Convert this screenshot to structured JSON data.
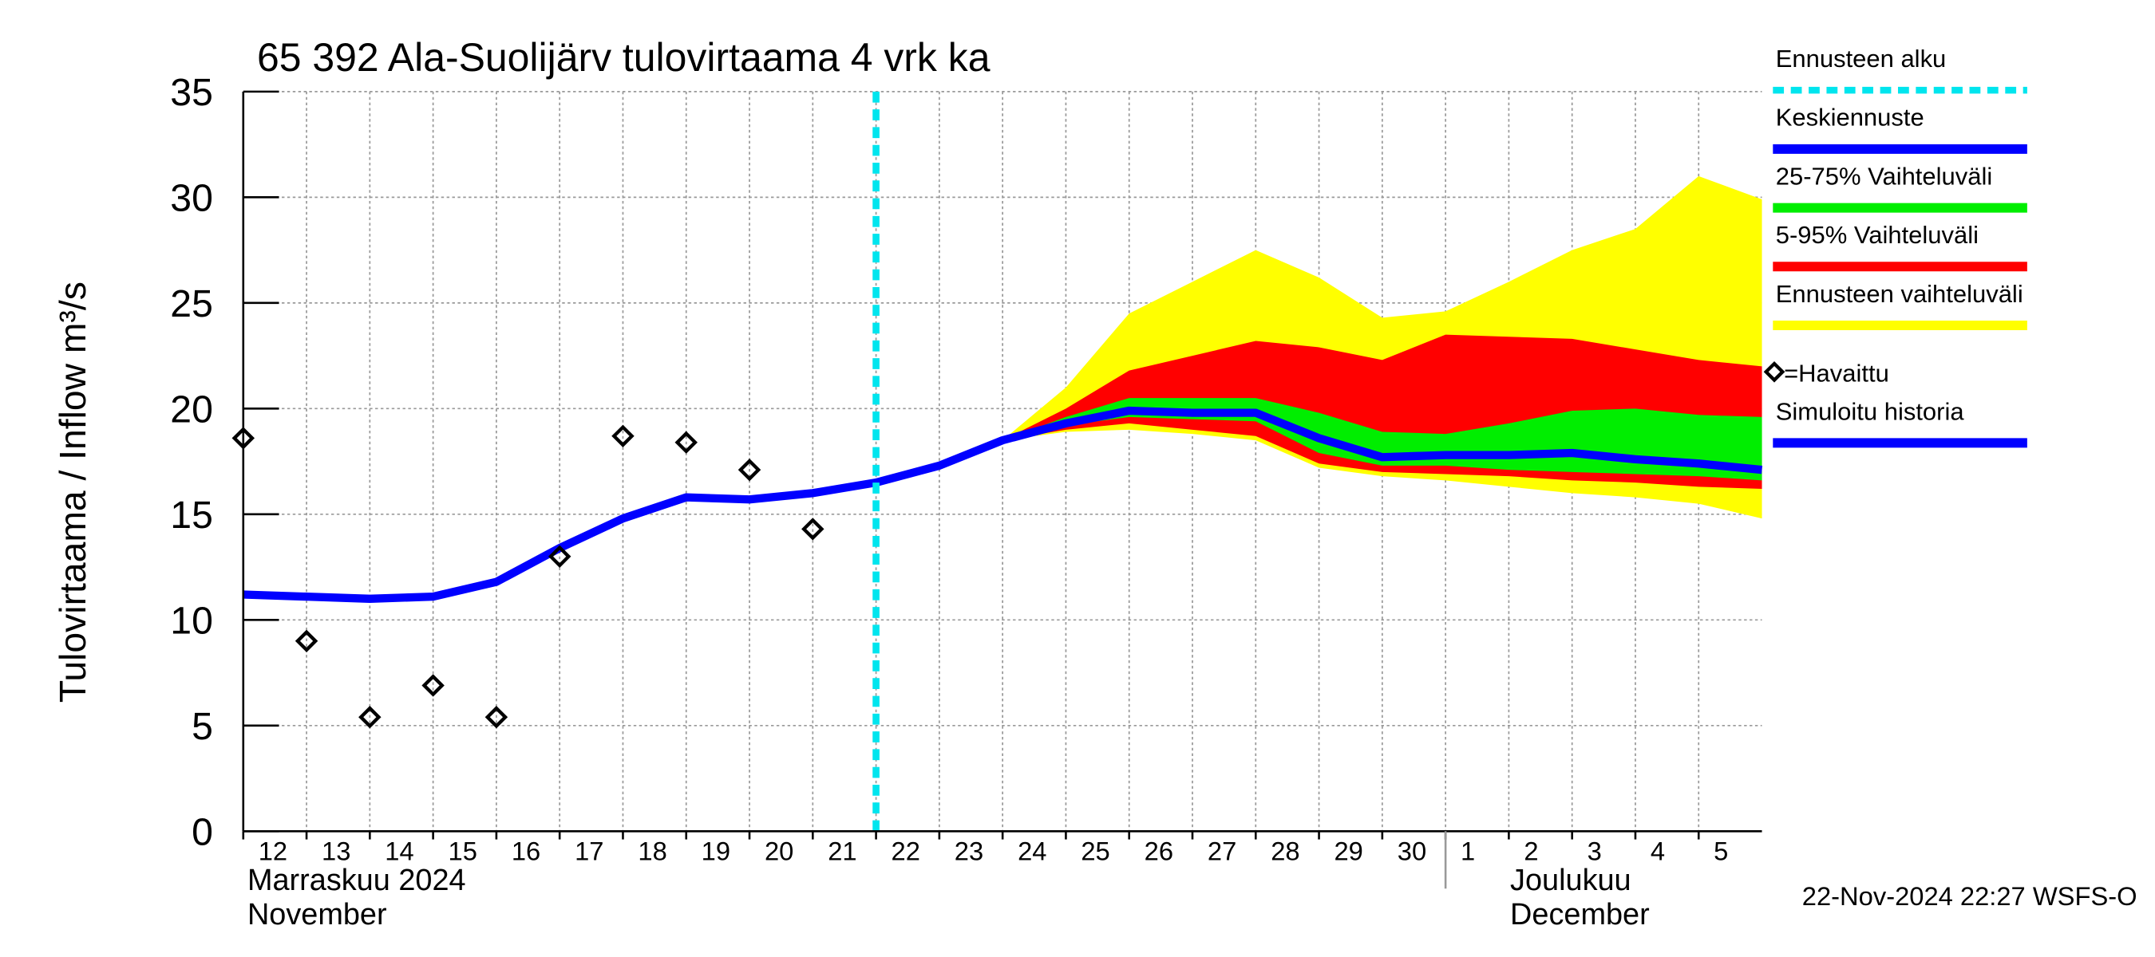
{
  "chart_data": {
    "type": "line",
    "title": "65 392 Ala-Suolijärv tulovirtaama 4 vrk ka",
    "ylabel": "Tulovirtaama / Inflow    m³/s",
    "timestamp": "22-Nov-2024 22:27 WSFS-O",
    "month_labels": [
      [
        "Marraskuu 2024",
        "November"
      ],
      [
        "Joulukuu",
        "December"
      ]
    ],
    "xlim": [
      0,
      24
    ],
    "ylim": [
      0,
      35
    ],
    "grid": true,
    "xticks": [
      {
        "value": 0,
        "label": "12"
      },
      {
        "value": 1,
        "label": "13"
      },
      {
        "value": 2,
        "label": "14"
      },
      {
        "value": 3,
        "label": "15"
      },
      {
        "value": 4,
        "label": "16"
      },
      {
        "value": 5,
        "label": "17"
      },
      {
        "value": 6,
        "label": "18"
      },
      {
        "value": 7,
        "label": "19"
      },
      {
        "value": 8,
        "label": "20"
      },
      {
        "value": 9,
        "label": "21"
      },
      {
        "value": 10,
        "label": "22"
      },
      {
        "value": 11,
        "label": "23"
      },
      {
        "value": 12,
        "label": "24"
      },
      {
        "value": 13,
        "label": "25"
      },
      {
        "value": 14,
        "label": "26"
      },
      {
        "value": 15,
        "label": "27"
      },
      {
        "value": 16,
        "label": "28"
      },
      {
        "value": 17,
        "label": "29"
      },
      {
        "value": 18,
        "label": "30"
      },
      {
        "value": 19,
        "label": "1"
      },
      {
        "value": 20,
        "label": "2"
      },
      {
        "value": 21,
        "label": "3"
      },
      {
        "value": 22,
        "label": "4"
      },
      {
        "value": 23,
        "label": "5"
      }
    ],
    "yticks": [
      0,
      5,
      10,
      15,
      20,
      25,
      30,
      35
    ],
    "forecast_start": {
      "name": "Ennusteen alku",
      "color": "#00e5ee",
      "x": 10
    },
    "series": [
      {
        "name": "Keskiennuste",
        "type": "line",
        "color": "#0000ff",
        "x": [
          10,
          11,
          12,
          13,
          14,
          15,
          16,
          17,
          18,
          19,
          20,
          21,
          22,
          23,
          24
        ],
        "values": [
          16.5,
          17.3,
          18.5,
          19.3,
          19.9,
          19.8,
          19.8,
          18.6,
          17.7,
          17.8,
          17.8,
          17.9,
          17.6,
          17.4,
          17.1
        ]
      },
      {
        "name": "25-75% Vaihteluväli",
        "type": "band",
        "color": "#00ee00",
        "x": [
          12,
          13,
          14,
          15,
          16,
          17,
          18,
          19,
          20,
          21,
          22,
          23,
          24
        ],
        "lower": [
          18.5,
          19.2,
          19.6,
          19.5,
          19.4,
          17.9,
          17.3,
          17.3,
          17.1,
          17.0,
          16.9,
          16.8,
          16.6
        ],
        "upper": [
          18.5,
          19.6,
          20.5,
          20.5,
          20.5,
          19.8,
          18.9,
          18.8,
          19.3,
          19.9,
          20.0,
          19.7,
          19.6
        ]
      },
      {
        "name": "5-95% Vaihteluväli",
        "type": "band",
        "color": "#ff0000",
        "x": [
          12,
          13,
          14,
          15,
          16,
          17,
          18,
          19,
          20,
          21,
          22,
          23,
          24
        ],
        "lower": [
          18.5,
          19.0,
          19.3,
          19.0,
          18.7,
          17.4,
          17.0,
          16.9,
          16.8,
          16.6,
          16.5,
          16.3,
          16.2
        ],
        "upper": [
          18.5,
          20.0,
          21.8,
          22.5,
          23.2,
          22.9,
          22.3,
          23.5,
          23.4,
          23.3,
          22.8,
          22.3,
          22.0
        ]
      },
      {
        "name": "Ennusteen vaihteluväli",
        "type": "band",
        "color": "#ffff00",
        "x": [
          12,
          13,
          14,
          15,
          16,
          17,
          18,
          19,
          20,
          21,
          22,
          23,
          24
        ],
        "lower": [
          18.5,
          18.9,
          19.0,
          18.8,
          18.5,
          17.2,
          16.8,
          16.6,
          16.3,
          16.0,
          15.8,
          15.5,
          14.8
        ],
        "upper": [
          18.5,
          21.0,
          24.5,
          26.0,
          27.5,
          26.2,
          24.3,
          24.6,
          26.0,
          27.5,
          28.5,
          31.0,
          29.9
        ]
      },
      {
        "name": "=Havaittu",
        "type": "scatter",
        "color": "#000000",
        "x": [
          0,
          1,
          2,
          3,
          4,
          5,
          6,
          7,
          8,
          9
        ],
        "values": [
          18.6,
          9.0,
          5.4,
          6.9,
          5.4,
          13.0,
          18.7,
          18.4,
          17.1,
          14.3
        ]
      },
      {
        "name": "Simuloitu historia",
        "type": "line",
        "color": "#0000ff",
        "x": [
          0,
          1,
          2,
          3,
          4,
          5,
          6,
          7,
          8,
          9,
          10
        ],
        "values": [
          11.2,
          11.1,
          11.0,
          11.1,
          11.8,
          13.4,
          14.8,
          15.8,
          15.7,
          16.0,
          16.5
        ]
      }
    ]
  }
}
